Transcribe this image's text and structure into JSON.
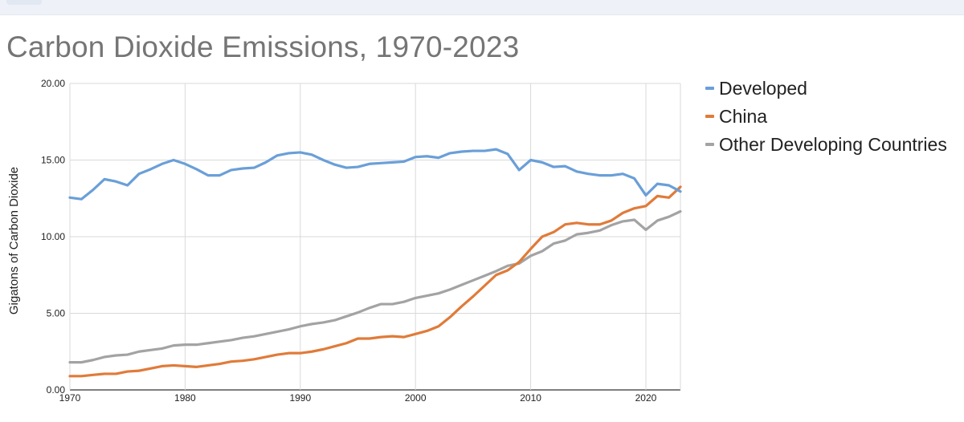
{
  "chart_data": {
    "type": "line",
    "title": "Carbon Dioxide Emissions, 1970-2023",
    "xlabel": "",
    "ylabel": "Gigatons of Carbon Dioxide",
    "xlim": [
      1970,
      2023
    ],
    "ylim": [
      0,
      20
    ],
    "x_ticks": [
      "1970",
      "1980",
      "1990",
      "2000",
      "2010",
      "2020"
    ],
    "y_ticks": [
      "0.00",
      "5.00",
      "10.00",
      "15.00",
      "20.00"
    ],
    "grid": true,
    "legend": "right",
    "x": [
      1970,
      1971,
      1972,
      1973,
      1974,
      1975,
      1976,
      1977,
      1978,
      1979,
      1980,
      1981,
      1982,
      1983,
      1984,
      1985,
      1986,
      1987,
      1988,
      1989,
      1990,
      1991,
      1992,
      1993,
      1994,
      1995,
      1996,
      1997,
      1998,
      1999,
      2000,
      2001,
      2002,
      2003,
      2004,
      2005,
      2006,
      2007,
      2008,
      2009,
      2010,
      2011,
      2012,
      2013,
      2014,
      2015,
      2016,
      2017,
      2018,
      2019,
      2020,
      2021,
      2022,
      2023
    ],
    "series": [
      {
        "name": "Developed",
        "color": "#6a9fd8",
        "values": [
          12.55,
          12.45,
          13.05,
          13.75,
          13.6,
          13.35,
          14.1,
          14.4,
          14.75,
          15.0,
          14.75,
          14.4,
          14.0,
          14.0,
          14.35,
          14.45,
          14.5,
          14.85,
          15.3,
          15.45,
          15.5,
          15.35,
          15.0,
          14.7,
          14.5,
          14.55,
          14.75,
          14.8,
          14.85,
          14.9,
          15.2,
          15.25,
          15.15,
          15.45,
          15.55,
          15.6,
          15.6,
          15.7,
          15.4,
          14.35,
          15.0,
          14.85,
          14.55,
          14.6,
          14.25,
          14.1,
          14.0,
          14.0,
          14.1,
          13.8,
          12.7,
          13.45,
          13.35,
          12.95
        ]
      },
      {
        "name": "China",
        "color": "#e07b39",
        "values": [
          0.9,
          0.9,
          0.98,
          1.05,
          1.05,
          1.2,
          1.25,
          1.4,
          1.55,
          1.6,
          1.55,
          1.5,
          1.6,
          1.7,
          1.85,
          1.9,
          2.0,
          2.15,
          2.3,
          2.4,
          2.4,
          2.5,
          2.65,
          2.85,
          3.05,
          3.35,
          3.35,
          3.45,
          3.5,
          3.45,
          3.65,
          3.85,
          4.15,
          4.75,
          5.45,
          6.1,
          6.8,
          7.5,
          7.8,
          8.35,
          9.2,
          10.0,
          10.3,
          10.8,
          10.9,
          10.8,
          10.8,
          11.05,
          11.55,
          11.85,
          12.0,
          12.65,
          12.55,
          13.25
        ]
      },
      {
        "name": "Other Developing Countries",
        "color": "#a3a3a3",
        "values": [
          1.8,
          1.8,
          1.95,
          2.15,
          2.25,
          2.3,
          2.5,
          2.6,
          2.7,
          2.9,
          2.95,
          2.95,
          3.05,
          3.15,
          3.25,
          3.4,
          3.5,
          3.65,
          3.8,
          3.95,
          4.15,
          4.3,
          4.4,
          4.55,
          4.8,
          5.05,
          5.35,
          5.6,
          5.6,
          5.75,
          6.0,
          6.15,
          6.3,
          6.55,
          6.85,
          7.15,
          7.45,
          7.75,
          8.1,
          8.25,
          8.75,
          9.05,
          9.55,
          9.75,
          10.15,
          10.25,
          10.4,
          10.75,
          11.0,
          11.1,
          10.45,
          11.05,
          11.3,
          11.65
        ]
      }
    ]
  }
}
